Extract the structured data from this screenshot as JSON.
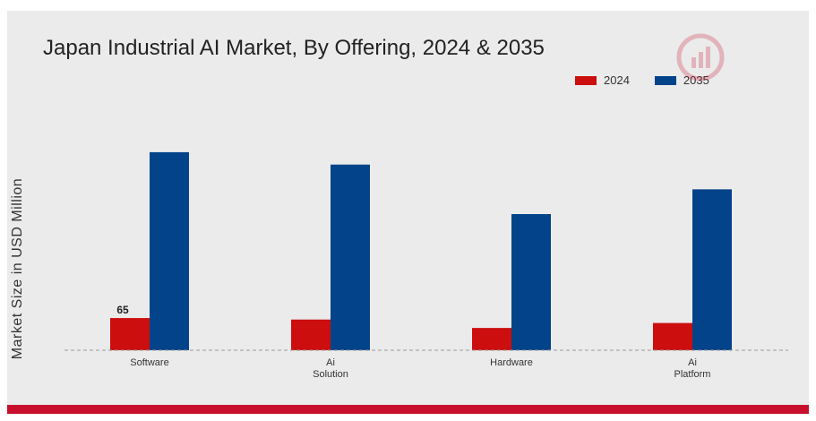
{
  "chart_data": {
    "type": "bar",
    "title": "Japan Industrial AI Market, By Offering, 2024 & 2035",
    "ylabel": "Market Size in USD Million",
    "xlabel": "",
    "categories": [
      [
        "Software"
      ],
      [
        "Ai",
        "Solution"
      ],
      [
        "Hardware"
      ],
      [
        "Ai",
        "Platform"
      ]
    ],
    "series": [
      {
        "name": "2024",
        "values": [
          65,
          62,
          45,
          55
        ]
      },
      {
        "name": "2035",
        "values": [
          400,
          375,
          275,
          325
        ]
      }
    ],
    "data_labels": [
      {
        "series": 0,
        "index": 0,
        "text": "65"
      }
    ],
    "ylim": [
      0,
      440
    ],
    "grid": false,
    "legend_position": "top-right",
    "colors": {
      "2024": "#cc0e0e",
      "2035": "#02438a",
      "baseline": "#999999",
      "accent_bar": "#c8102e"
    }
  }
}
